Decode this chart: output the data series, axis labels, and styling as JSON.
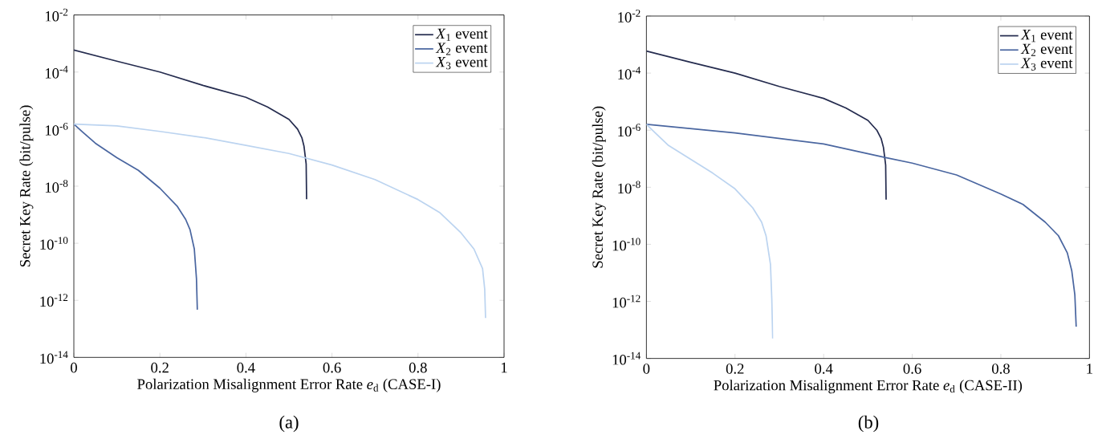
{
  "chart_data": [
    {
      "type": "line",
      "xlabel": "Polarization Misalignment Error Rate *e*$_{d}$ (CASE-I)",
      "ylabel": "Secret Key Rate (bit/pulse)",
      "log": true,
      "legend": "top right",
      "xlim": [
        0,
        1
      ],
      "ylim": [
        1e-14,
        0.01
      ],
      "xticks": [
        0,
        0.2,
        0.4,
        0.6,
        0.8,
        1
      ],
      "yticks": [
        {
          "value": 1e-14,
          "label": "10$^{-14}$"
        },
        {
          "value": 1e-12,
          "label": "10$^{-12}$"
        },
        {
          "value": 1e-10,
          "label": "10$^{-10}$"
        },
        {
          "value": 1e-08,
          "label": "10$^{-8}$"
        },
        {
          "value": 1e-06,
          "label": "10$^{-6}$"
        },
        {
          "value": 0.0001,
          "label": "10$^{-4}$"
        },
        {
          "value": 0.01,
          "label": "10$^{-2}$"
        }
      ],
      "annotations": [
        "(a)"
      ],
      "series": [
        {
          "name": "*X*$_{1}$ event",
          "color": "#252c4f",
          "x": [
            0,
            0.1,
            0.2,
            0.3,
            0.4,
            0.45,
            0.5,
            0.52,
            0.53,
            0.535,
            0.54,
            0.541
          ],
          "values": [
            0.00059,
            0.00024,
            0.0001,
            3.4e-05,
            1.3e-05,
            6e-06,
            2.2e-06,
            1e-06,
            5e-07,
            2.5e-07,
            6e-08,
            3.5e-09
          ]
        },
        {
          "name": "*X*$_{2}$ event",
          "color": "#4a66a0",
          "x": [
            0,
            0.02,
            0.05,
            0.1,
            0.15,
            0.2,
            0.24,
            0.26,
            0.27,
            0.28,
            0.285,
            0.287
          ],
          "values": [
            1.5e-06,
            8e-07,
            3.2e-07,
            1e-07,
            3.6e-08,
            8.5e-09,
            2e-09,
            6.8e-10,
            3e-10,
            6.3e-11,
            5.8e-12,
            4.7e-13
          ]
        },
        {
          "name": "*X*$_{3}$ event",
          "color": "#bcd4f0",
          "x": [
            0,
            0.1,
            0.2,
            0.3,
            0.4,
            0.5,
            0.6,
            0.7,
            0.8,
            0.85,
            0.9,
            0.93,
            0.95,
            0.955,
            0.957
          ],
          "values": [
            1.5e-06,
            1.3e-06,
            8.3e-07,
            5.1e-07,
            2.7e-07,
            1.4e-07,
            5.5e-08,
            1.7e-08,
            3.4e-09,
            1.2e-09,
            2.3e-10,
            6.3e-11,
            1.3e-11,
            2.5e-12,
            2.4e-13
          ]
        }
      ]
    },
    {
      "type": "line",
      "xlabel": "Polarization Misalignment Error Rate *e*$_{d}$ (CASE-II)",
      "ylabel": "Secret Key Rate (bit/pulse)",
      "log": true,
      "legend": "top right",
      "xlim": [
        0,
        1
      ],
      "ylim": [
        1e-14,
        0.01
      ],
      "xticks": [
        0,
        0.2,
        0.4,
        0.6,
        0.8,
        1
      ],
      "yticks": [
        {
          "value": 1e-14,
          "label": "10$^{-14}$"
        },
        {
          "value": 1e-12,
          "label": "10$^{-12}$"
        },
        {
          "value": 1e-10,
          "label": "10$^{-10}$"
        },
        {
          "value": 1e-08,
          "label": "10$^{-8}$"
        },
        {
          "value": 1e-06,
          "label": "10$^{-6}$"
        },
        {
          "value": 0.0001,
          "label": "10$^{-4}$"
        },
        {
          "value": 0.01,
          "label": "10$^{-2}$"
        }
      ],
      "annotations": [
        "(b)"
      ],
      "series": [
        {
          "name": "*X*$_{1}$ event",
          "color": "#252c4f",
          "x": [
            0,
            0.1,
            0.2,
            0.3,
            0.4,
            0.45,
            0.5,
            0.52,
            0.53,
            0.535,
            0.54,
            0.541
          ],
          "values": [
            0.00059,
            0.00024,
            0.0001,
            3.4e-05,
            1.3e-05,
            6e-06,
            2.2e-06,
            1e-06,
            5e-07,
            2.5e-07,
            6e-08,
            3.7e-09
          ]
        },
        {
          "name": "*X*$_{2}$ event",
          "color": "#4a66a0",
          "x": [
            0,
            0.2,
            0.4,
            0.54,
            0.6,
            0.7,
            0.8,
            0.85,
            0.9,
            0.93,
            0.95,
            0.96,
            0.967,
            0.97
          ],
          "values": [
            1.6e-06,
            8e-07,
            3.3e-07,
            1.1e-07,
            7e-08,
            2.7e-08,
            5.8e-09,
            2.5e-09,
            6e-10,
            2e-10,
            5e-11,
            1.2e-11,
            1.7e-12,
            1.3e-13
          ]
        },
        {
          "name": "*X*$_{3}$ event",
          "color": "#bcd4f0",
          "x": [
            0,
            0.02,
            0.05,
            0.1,
            0.15,
            0.2,
            0.24,
            0.26,
            0.27,
            0.28,
            0.283,
            0.285
          ],
          "values": [
            1.6e-06,
            8e-07,
            2.9e-07,
            9.5e-08,
            3.1e-08,
            8.8e-09,
            1.9e-09,
            6e-10,
            2e-10,
            2e-11,
            1.2e-12,
            5e-14
          ]
        }
      ]
    }
  ]
}
